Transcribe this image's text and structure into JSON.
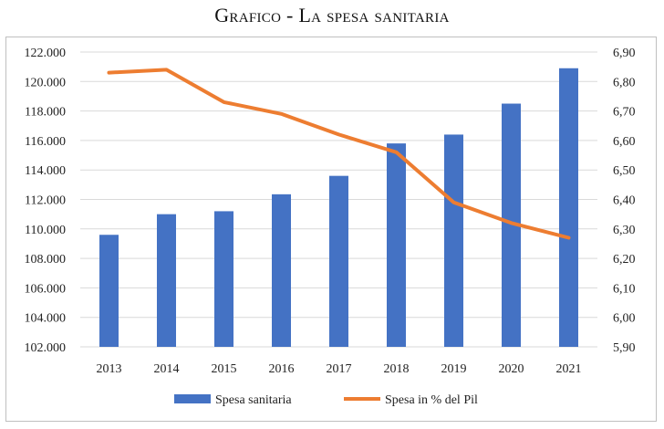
{
  "title": "Grafico    - La spesa sanitaria",
  "chart_data": {
    "type": "bar",
    "categories": [
      "2013",
      "2014",
      "2015",
      "2016",
      "2017",
      "2018",
      "2019",
      "2020",
      "2021"
    ],
    "series": [
      {
        "name": "Spesa sanitaria",
        "type": "bar",
        "axis": "left",
        "color": "#4472C4",
        "values": [
          109600,
          111000,
          111200,
          112350,
          113600,
          115800,
          116400,
          118500,
          120900
        ]
      },
      {
        "name": "Spesa in % del Pil",
        "type": "line",
        "axis": "right",
        "color": "#ED7D31",
        "values": [
          6.83,
          6.84,
          6.73,
          6.69,
          6.62,
          6.56,
          6.39,
          6.32,
          6.27
        ]
      }
    ],
    "y_left": {
      "min": 102000,
      "max": 122000,
      "ticks": [
        "102.000",
        "104.000",
        "106.000",
        "108.000",
        "110.000",
        "112.000",
        "114.000",
        "116.000",
        "118.000",
        "120.000",
        "122.000"
      ]
    },
    "y_right": {
      "min": 5.9,
      "max": 6.9,
      "ticks": [
        "5,90",
        "6,00",
        "6,10",
        "6,20",
        "6,30",
        "6,40",
        "6,50",
        "6,60",
        "6,70",
        "6,80",
        "6,90"
      ]
    },
    "grid": true,
    "legend": "bottom"
  }
}
